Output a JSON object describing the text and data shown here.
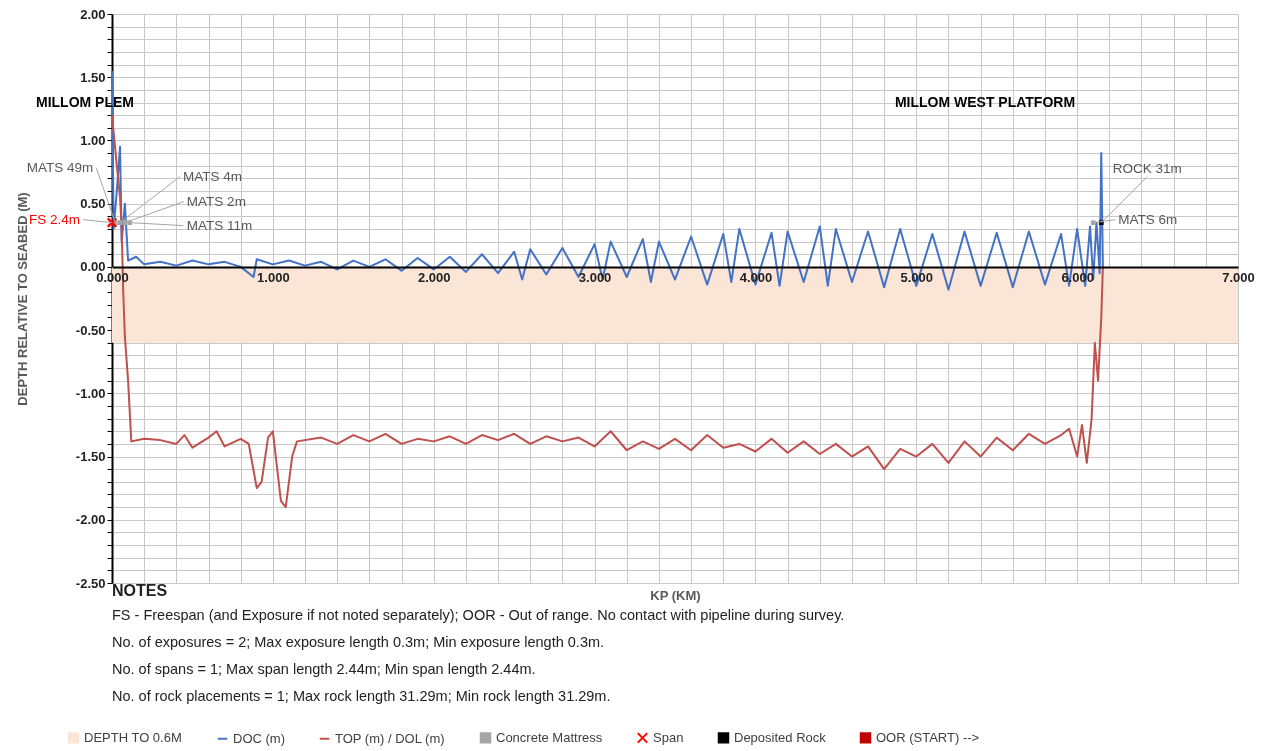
{
  "chart_data": {
    "type": "line",
    "xlabel": "KP (KM)",
    "ylabel": "DEPTH RELATIVE TO SEABED (M)",
    "xlim": [
      0,
      7
    ],
    "ylim": [
      -2.5,
      2
    ],
    "xticks": [
      {
        "value": 0,
        "label": "0.000"
      },
      {
        "value": 0.2,
        "label": null
      },
      {
        "value": 0.4,
        "label": null
      },
      {
        "value": 0.6,
        "label": null
      },
      {
        "value": 0.8,
        "label": null
      },
      {
        "value": 1,
        "label": "1.000"
      },
      {
        "value": 1.2,
        "label": null
      },
      {
        "value": 1.4,
        "label": null
      },
      {
        "value": 1.6,
        "label": null
      },
      {
        "value": 1.8,
        "label": null
      },
      {
        "value": 2,
        "label": "2.000"
      },
      {
        "value": 2.2,
        "label": null
      },
      {
        "value": 2.4,
        "label": null
      },
      {
        "value": 2.6,
        "label": null
      },
      {
        "value": 2.8,
        "label": null
      },
      {
        "value": 3,
        "label": "3.000"
      },
      {
        "value": 3.2,
        "label": null
      },
      {
        "value": 3.4,
        "label": null
      },
      {
        "value": 3.6,
        "label": null
      },
      {
        "value": 3.8,
        "label": null
      },
      {
        "value": 4,
        "label": "4.000"
      },
      {
        "value": 4.2,
        "label": null
      },
      {
        "value": 4.4,
        "label": null
      },
      {
        "value": 4.6,
        "label": null
      },
      {
        "value": 4.8,
        "label": null
      },
      {
        "value": 5,
        "label": "5.000"
      },
      {
        "value": 5.2,
        "label": null
      },
      {
        "value": 5.4,
        "label": null
      },
      {
        "value": 5.6,
        "label": null
      },
      {
        "value": 5.8,
        "label": null
      },
      {
        "value": 6,
        "label": "6.000"
      },
      {
        "value": 6.2,
        "label": null
      },
      {
        "value": 6.4,
        "label": null
      },
      {
        "value": 6.6,
        "label": null
      },
      {
        "value": 6.8,
        "label": null
      },
      {
        "value": 7,
        "label": "7.000"
      }
    ],
    "yticks": [
      {
        "value": -2.5,
        "label": "-2.50"
      },
      {
        "value": -2.4,
        "label": null
      },
      {
        "value": -2.3,
        "label": null
      },
      {
        "value": -2.2,
        "label": null
      },
      {
        "value": -2.1,
        "label": null
      },
      {
        "value": -2,
        "label": "-2.00"
      },
      {
        "value": -1.9,
        "label": null
      },
      {
        "value": -1.8,
        "label": null
      },
      {
        "value": -1.7,
        "label": null
      },
      {
        "value": -1.6,
        "label": null
      },
      {
        "value": -1.5,
        "label": "-1.50"
      },
      {
        "value": -1.4,
        "label": null
      },
      {
        "value": -1.3,
        "label": null
      },
      {
        "value": -1.2,
        "label": null
      },
      {
        "value": -1.1,
        "label": null
      },
      {
        "value": -1,
        "label": "-1.00"
      },
      {
        "value": -0.9,
        "label": null
      },
      {
        "value": -0.8,
        "label": null
      },
      {
        "value": -0.7,
        "label": null
      },
      {
        "value": -0.6,
        "label": null
      },
      {
        "value": -0.5,
        "label": "-0.50"
      },
      {
        "value": -0.4,
        "label": null
      },
      {
        "value": -0.3,
        "label": null
      },
      {
        "value": -0.2,
        "label": null
      },
      {
        "value": -0.1,
        "label": null
      },
      {
        "value": 0,
        "label": "0.00"
      },
      {
        "value": 0.1,
        "label": null
      },
      {
        "value": 0.2,
        "label": null
      },
      {
        "value": 0.3,
        "label": null
      },
      {
        "value": 0.4,
        "label": null
      },
      {
        "value": 0.5,
        "label": "0.50"
      },
      {
        "value": 0.6,
        "label": null
      },
      {
        "value": 0.7,
        "label": null
      },
      {
        "value": 0.8,
        "label": null
      },
      {
        "value": 0.9,
        "label": null
      },
      {
        "value": 1,
        "label": "1.00"
      },
      {
        "value": 1.1,
        "label": null
      },
      {
        "value": 1.2,
        "label": null
      },
      {
        "value": 1.3,
        "label": null
      },
      {
        "value": 1.4,
        "label": null
      },
      {
        "value": 1.5,
        "label": "1.50"
      },
      {
        "value": 1.6,
        "label": null
      },
      {
        "value": 1.7,
        "label": null
      },
      {
        "value": 1.8,
        "label": null
      },
      {
        "value": 1.9,
        "label": null
      },
      {
        "value": 2,
        "label": "2.00"
      }
    ],
    "grid": true,
    "legend": "bottom",
    "bands": [
      {
        "axis": "y",
        "from": -0.6,
        "to": 0,
        "label": "DEPTH TO 0.6M",
        "color": "#fbe5d6"
      }
    ],
    "series": [
      {
        "name": "DOC (m)",
        "type": "line",
        "color": "#4472c4",
        "x": [
          0,
          0.01,
          0.03,
          0.05,
          0.06,
          0.08,
          0.1,
          0.15,
          0.2,
          0.3,
          0.4,
          0.5,
          0.6,
          0.7,
          0.8,
          0.88,
          0.9,
          1,
          1.1,
          1.2,
          1.3,
          1.4,
          1.5,
          1.6,
          1.7,
          1.8,
          1.9,
          2,
          2.1,
          2.2,
          2.3,
          2.4,
          2.5,
          2.55,
          2.6,
          2.7,
          2.8,
          2.9,
          3,
          3.05,
          3.1,
          3.2,
          3.3,
          3.35,
          3.4,
          3.5,
          3.6,
          3.7,
          3.8,
          3.85,
          3.9,
          4,
          4.1,
          4.15,
          4.2,
          4.3,
          4.4,
          4.45,
          4.5,
          4.6,
          4.7,
          4.8,
          4.9,
          5,
          5.1,
          5.2,
          5.3,
          5.4,
          5.5,
          5.6,
          5.7,
          5.8,
          5.9,
          5.95,
          6,
          6.05,
          6.08,
          6.1,
          6.12,
          6.14,
          6.15,
          6.16
        ],
        "values": [
          1.55,
          0.3,
          0.6,
          0.95,
          0.2,
          0.5,
          0.05,
          0.08,
          0.02,
          0.04,
          0.01,
          0.05,
          0.02,
          0.04,
          0,
          -0.08,
          0.06,
          0.02,
          0.05,
          0.01,
          0.04,
          -0.02,
          0.05,
          0,
          0.06,
          -0.03,
          0.07,
          -0.02,
          0.08,
          -0.04,
          0.1,
          -0.05,
          0.12,
          -0.1,
          0.14,
          -0.06,
          0.15,
          -0.08,
          0.18,
          -0.1,
          0.2,
          -0.08,
          0.22,
          -0.12,
          0.2,
          -0.1,
          0.24,
          -0.14,
          0.26,
          -0.12,
          0.3,
          -0.14,
          0.27,
          -0.15,
          0.28,
          -0.12,
          0.32,
          -0.15,
          0.3,
          -0.12,
          0.28,
          -0.16,
          0.3,
          -0.15,
          0.26,
          -0.18,
          0.28,
          -0.15,
          0.27,
          -0.16,
          0.28,
          -0.14,
          0.26,
          -0.15,
          0.3,
          -0.15,
          0.32,
          -0.1,
          0.35,
          -0.05,
          0.9,
          0
        ]
      },
      {
        "name": "TOP (m) / DOL (m)",
        "type": "line",
        "color": "#c0504d",
        "x": [
          0,
          0.03,
          0.05,
          0.06,
          0.07,
          0.08,
          0.1,
          0.12,
          0.2,
          0.3,
          0.4,
          0.45,
          0.5,
          0.6,
          0.65,
          0.7,
          0.8,
          0.85,
          0.9,
          0.93,
          0.97,
          1,
          1.05,
          1.08,
          1.12,
          1.15,
          1.3,
          1.4,
          1.5,
          1.6,
          1.7,
          1.8,
          1.9,
          2,
          2.1,
          2.2,
          2.3,
          2.4,
          2.5,
          2.6,
          2.7,
          2.8,
          2.9,
          3,
          3.1,
          3.2,
          3.3,
          3.4,
          3.5,
          3.6,
          3.7,
          3.8,
          3.9,
          4,
          4.1,
          4.2,
          4.3,
          4.4,
          4.5,
          4.6,
          4.7,
          4.8,
          4.9,
          5,
          5.1,
          5.2,
          5.3,
          5.4,
          5.5,
          5.6,
          5.7,
          5.8,
          5.9,
          5.95,
          6,
          6.03,
          6.06,
          6.09,
          6.11,
          6.13,
          6.15,
          6.16
        ],
        "values": [
          1.2,
          0.8,
          0.55,
          0.3,
          -0.2,
          -0.55,
          -0.9,
          -1.38,
          -1.36,
          -1.37,
          -1.4,
          -1.33,
          -1.43,
          -1.35,
          -1.3,
          -1.42,
          -1.36,
          -1.4,
          -1.75,
          -1.7,
          -1.35,
          -1.3,
          -1.85,
          -1.9,
          -1.5,
          -1.38,
          -1.35,
          -1.4,
          -1.33,
          -1.38,
          -1.32,
          -1.4,
          -1.36,
          -1.38,
          -1.34,
          -1.4,
          -1.33,
          -1.37,
          -1.32,
          -1.4,
          -1.34,
          -1.38,
          -1.35,
          -1.42,
          -1.3,
          -1.45,
          -1.38,
          -1.44,
          -1.36,
          -1.45,
          -1.33,
          -1.43,
          -1.4,
          -1.46,
          -1.36,
          -1.47,
          -1.38,
          -1.48,
          -1.4,
          -1.5,
          -1.42,
          -1.6,
          -1.44,
          -1.5,
          -1.4,
          -1.55,
          -1.38,
          -1.5,
          -1.35,
          -1.45,
          -1.32,
          -1.4,
          -1.33,
          -1.28,
          -1.5,
          -1.25,
          -1.55,
          -1.2,
          -0.6,
          -0.9,
          -0.4,
          0
        ]
      },
      {
        "name": "Concrete Mattress",
        "type": "scatter",
        "marker": "square",
        "color": "#a5a5a5",
        "x": [
          0.02,
          0.05,
          0.08,
          0.11,
          6.1
        ],
        "values": [
          0.35,
          0.35,
          0.35,
          0.35,
          0.35
        ]
      },
      {
        "name": "Span",
        "type": "scatter",
        "marker": "cross",
        "color": "#ff0000",
        "x": [
          0
        ],
        "values": [
          0.35
        ]
      },
      {
        "name": "Deposited Rock",
        "type": "scatter",
        "marker": "square",
        "color": "#000000",
        "x": [
          6.15
        ],
        "values": [
          0.35
        ]
      },
      {
        "name": "OOR (START) -->",
        "type": "scatter",
        "marker": "square",
        "color": "#c00000"
      }
    ],
    "annotations": [
      "MILLOM PLEM",
      "MILLOM WEST PLATFORM",
      {
        "text": "MATS 49m",
        "x": 0.02,
        "y": 0.35
      },
      {
        "text": "MATS 4m",
        "x": 0.05,
        "y": 0.35
      },
      {
        "text": "MATS 2m",
        "x": 0.08,
        "y": 0.35
      },
      {
        "text": "MATS 11m",
        "x": 0.11,
        "y": 0.35
      },
      {
        "text": "FS 2.4m",
        "x": 0,
        "y": 0.35
      },
      {
        "text": "ROCK 31m",
        "x": 6.15,
        "y": 0.35
      },
      {
        "text": "MATS 6m",
        "x": 6.1,
        "y": 0.35
      },
      "NOTES",
      "FS - Freespan (and Exposure if not noted separately); OOR - Out of range. No contact with pipeline during survey.",
      "No. of exposures = 2; Max exposure length 0.3m; Min exposure length 0.3m.",
      "No. of spans = 1; Max span length 2.44m; Min span length 2.44m.",
      "No. of rock placements = 1; Max rock length 31.29m; Min rock length 31.29m."
    ]
  }
}
